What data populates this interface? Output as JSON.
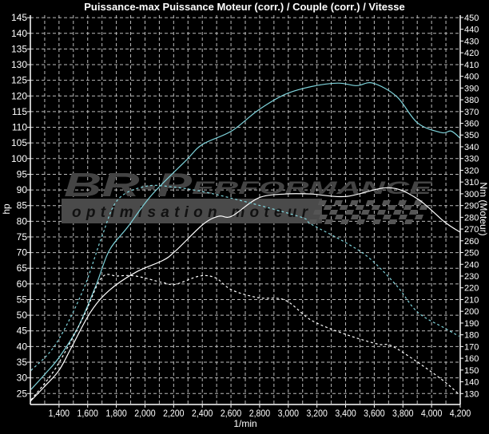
{
  "chart_data": {
    "type": "line",
    "title": "Puissance-max Puissance Moteur (corr.) / Couple (corr.) / Vitesse",
    "xlabel": "1/min",
    "ylabel_left": "hp",
    "ylabel_right": "Nm (Moteur)",
    "xlim": [
      1200,
      4200
    ],
    "xticks": [
      1400,
      1600,
      1800,
      2000,
      2200,
      2400,
      2600,
      2800,
      3000,
      3200,
      3400,
      3600,
      3800,
      4000,
      4200
    ],
    "xtick_labels": [
      "1,400",
      "1,600",
      "1,800",
      "2,000",
      "2,200",
      "2,400",
      "2,600",
      "2,800",
      "3,000",
      "3,200",
      "3,400",
      "3,600",
      "3,800",
      "4,000",
      "4,200"
    ],
    "ylim_left": [
      21.5,
      145.8
    ],
    "yticks_left": [
      25,
      30,
      35,
      40,
      45,
      50,
      55,
      60,
      65,
      70,
      75,
      80,
      85,
      90,
      95,
      100,
      105,
      110,
      115,
      120,
      125,
      130,
      135,
      140,
      145
    ],
    "ylim_right": [
      120.7,
      452
    ],
    "yticks_right": [
      130,
      140,
      150,
      160,
      170,
      180,
      190,
      200,
      210,
      220,
      230,
      240,
      250,
      260,
      270,
      280,
      290,
      300,
      310,
      320,
      330,
      340,
      350,
      360,
      370,
      380,
      390,
      400,
      410,
      420,
      430,
      440,
      450
    ],
    "grid": true,
    "background": "#000000",
    "series": [
      {
        "axis": "left",
        "color": "#7fd4dc",
        "style": "solid",
        "x": [
          1205,
          1306,
          1400,
          1530,
          1657,
          1750,
          1880,
          2047,
          2286,
          2400,
          2604,
          2788,
          2977,
          3161,
          3345,
          3478,
          3590,
          3757,
          3902,
          4069,
          4136,
          4200
        ],
        "y": [
          26.3,
          31.4,
          36.5,
          45.9,
          59.4,
          70.6,
          78.2,
          88.4,
          99.4,
          104.5,
          108.8,
          115.4,
          120.5,
          123.0,
          124.1,
          123.3,
          124.1,
          119.8,
          111.4,
          108.3,
          108.8,
          106.5
        ]
      },
      {
        "axis": "left",
        "color": "#ffffff",
        "style": "solid",
        "x": [
          1200,
          1300,
          1400,
          1490,
          1620,
          1750,
          1935,
          2125,
          2215,
          2405,
          2515,
          2605,
          2790,
          2975,
          3160,
          3400,
          3700,
          3900,
          4090,
          4200
        ],
        "y": [
          22.5,
          27.3,
          32.4,
          40.0,
          51.0,
          57.9,
          63.7,
          67.5,
          70.6,
          79.0,
          81.6,
          81.6,
          87.4,
          88.7,
          88.7,
          87.9,
          90.7,
          87.2,
          79.8,
          76.5
        ]
      },
      {
        "axis": "right",
        "color": "#7fd4dc",
        "style": "dashed",
        "x": [
          1205,
          1378,
          1567,
          1696,
          1807,
          1991,
          2181,
          2510,
          3067,
          3161,
          3400,
          3568,
          3757,
          3902,
          4091,
          4192
        ],
        "y": [
          149.7,
          172.1,
          217.7,
          262.5,
          294.5,
          306,
          306,
          299,
          281,
          274,
          258.5,
          245,
          221.7,
          199.3,
          185.7,
          178.8
        ]
      },
      {
        "axis": "right",
        "color": "#ffffff",
        "style": "dashed",
        "x": [
          1205,
          1378,
          1567,
          1696,
          1807,
          1935,
          2125,
          2214,
          2381,
          2493,
          2604,
          2788,
          2977,
          3161,
          3400,
          3624,
          3718,
          3902,
          4091,
          4192
        ],
        "y": [
          124.7,
          151.9,
          194.5,
          228.4,
          230,
          230,
          224.4,
          223,
          230,
          228.4,
          218.3,
          211.6,
          209.5,
          192.4,
          180.4,
          172.1,
          170.8,
          156.7,
          140.1,
          129.2
        ]
      }
    ]
  },
  "watermark": {
    "brand_big": "BR-P",
    "brand_small": "ERFORMANCE",
    "tagline": "optimisation moteur",
    "color": "#4a4a4a"
  }
}
